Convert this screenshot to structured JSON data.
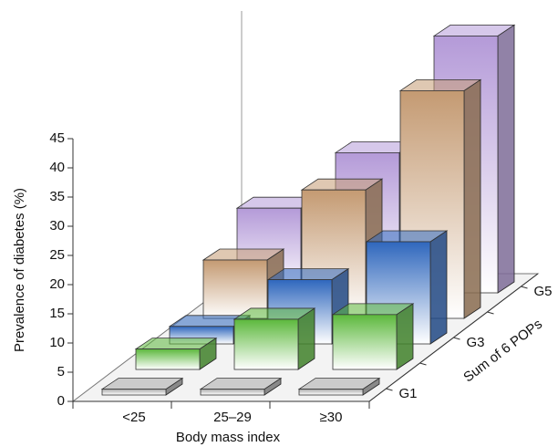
{
  "chart_data": {
    "type": "bar3d",
    "y_label": "Prevalence of diabetes (%)",
    "x_label": "Body mass index",
    "z_label": "Sum of 6 POPs",
    "categories": [
      "<25",
      "25–29",
      "≥30"
    ],
    "ylim": [
      0,
      45
    ],
    "yticks": [
      0,
      5,
      10,
      15,
      20,
      25,
      30,
      35,
      40,
      45
    ],
    "series": [
      {
        "name": "G1",
        "color": "#a9a9a9",
        "values": [
          1,
          1,
          1
        ]
      },
      {
        "name": null,
        "color": "#5cb83c",
        "values": [
          3.5,
          8.6,
          9.4
        ]
      },
      {
        "name": "G3",
        "color": "#2f67bd",
        "values": [
          3,
          11,
          17.5
        ]
      },
      {
        "name": null,
        "color": "#c49a72",
        "values": [
          10,
          22,
          39
        ]
      },
      {
        "name": "G5",
        "color": "#b49ad8",
        "values": [
          14.5,
          24,
          44
        ]
      }
    ]
  }
}
